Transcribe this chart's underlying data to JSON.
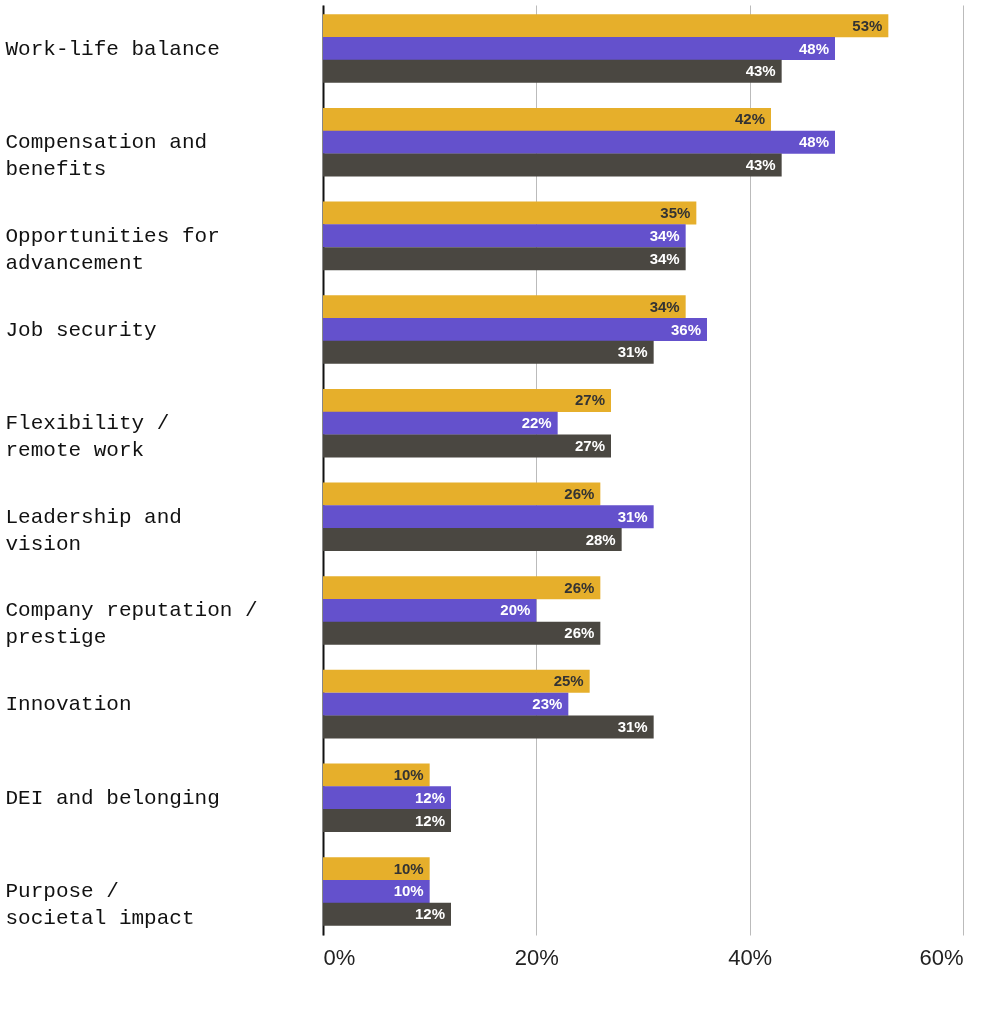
{
  "chart_data": {
    "type": "bar",
    "orientation": "horizontal",
    "categories": [
      "Work-life balance",
      "Compensation and\nbenefits",
      "Opportunities for\nadvancement",
      "Job security",
      "Flexibility /\nremote work",
      "Leadership and\nvision",
      "Company reputation /\nprestige",
      "Innovation",
      "DEI and belonging",
      "Purpose /\nsocietal impact"
    ],
    "series": [
      {
        "color": "#e6af2b",
        "values": [
          53,
          42,
          35,
          34,
          27,
          26,
          26,
          25,
          10,
          10
        ],
        "value_labels": [
          "53%",
          "42%",
          "35%",
          "34%",
          "27%",
          "26%",
          "26%",
          "25%",
          "10%",
          "10%"
        ]
      },
      {
        "color": "#6451cc",
        "values": [
          48,
          48,
          34,
          36,
          22,
          31,
          20,
          23,
          12,
          10
        ],
        "value_labels": [
          "48%",
          "48%",
          "34%",
          "36%",
          "22%",
          "31%",
          "20%",
          "23%",
          "12%",
          "10%"
        ]
      },
      {
        "color": "#4a4741",
        "values": [
          43,
          43,
          34,
          31,
          27,
          28,
          26,
          31,
          12,
          12
        ],
        "value_labels": [
          "43%",
          "43%",
          "34%",
          "31%",
          "27%",
          "28%",
          "26%",
          "31%",
          "12%",
          "12%"
        ]
      }
    ],
    "xlim": [
      0,
      60
    ],
    "xticks": [
      {
        "value": 0,
        "label": "0%"
      },
      {
        "value": 20,
        "label": "20%"
      },
      {
        "value": 40,
        "label": "40%"
      },
      {
        "value": 60,
        "label": "60%"
      }
    ],
    "grid": "x"
  }
}
